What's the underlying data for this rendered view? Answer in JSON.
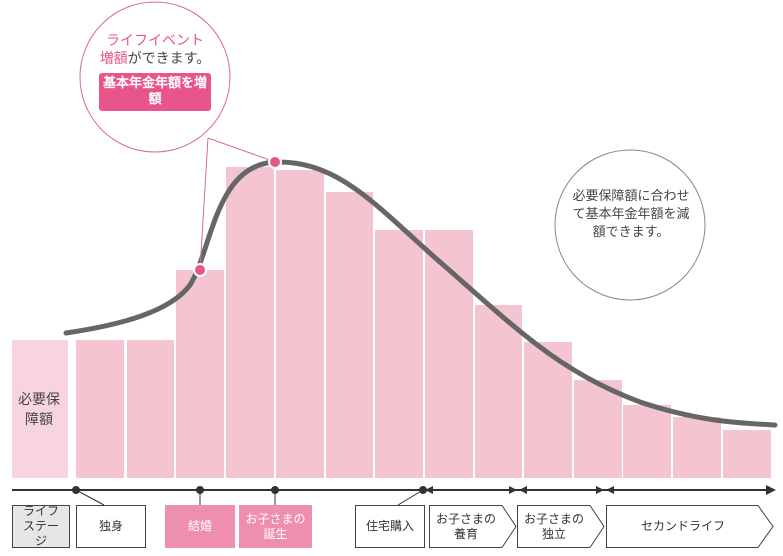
{
  "left_bubble": {
    "line1": "ライフイベント",
    "line2_highlight": "増額",
    "line2_rest": "ができます。",
    "badge": "基本年金年額を増額"
  },
  "right_bubble": {
    "text": "必要保障額に合わせて基本年金年額を減額できます。"
  },
  "required_label": "必要保障額",
  "stages": [
    {
      "label": "ライフステージ"
    },
    {
      "label": "独身"
    },
    {
      "label": "結婚"
    },
    {
      "label": "お子さまの誕生"
    },
    {
      "label": "住宅購入"
    },
    {
      "label": "お子さまの養育"
    },
    {
      "label": "お子さまの独立"
    },
    {
      "label": "セカンドライフ"
    }
  ],
  "colors": {
    "bar": "#f5c4d1",
    "bar_light": "#f8d5de",
    "accent": "#e8558a",
    "curve": "#666666"
  }
}
